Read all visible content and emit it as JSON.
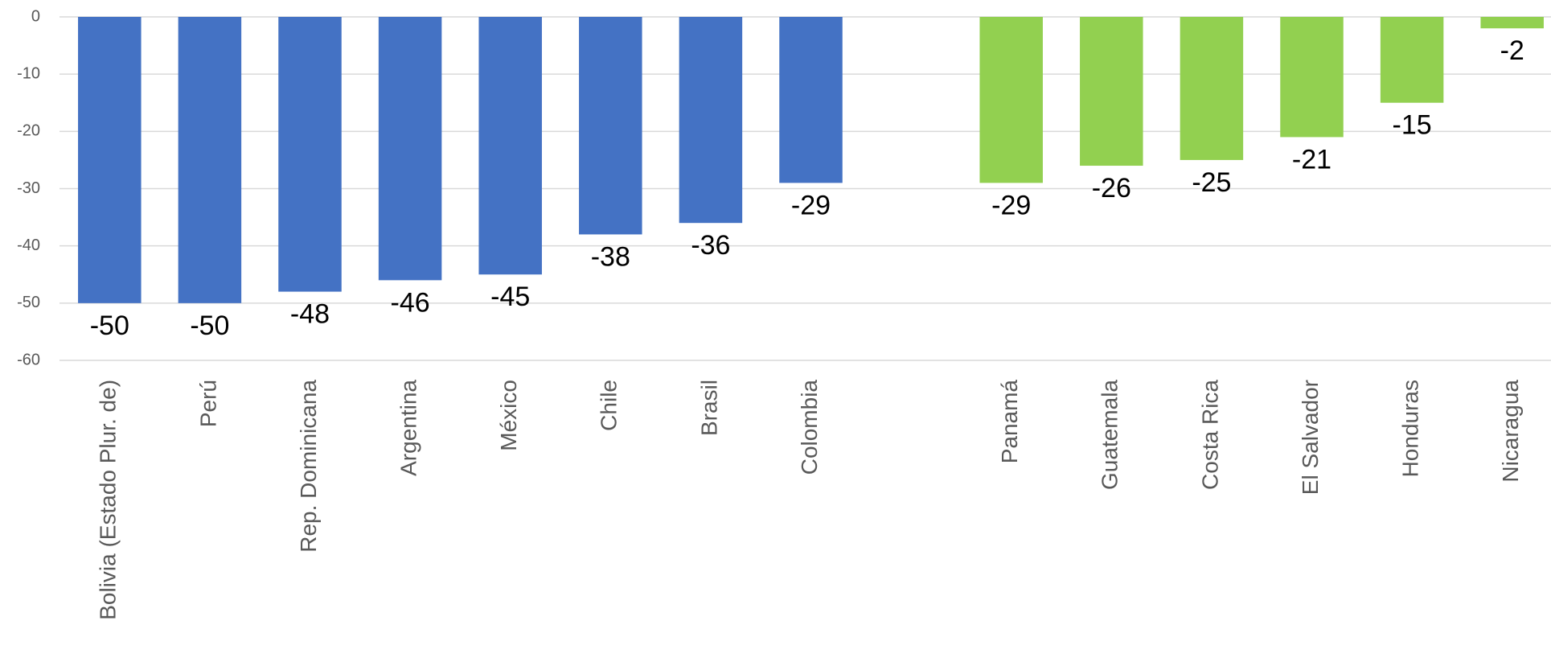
{
  "chart_data": {
    "type": "bar",
    "categories": [
      "Bolivia (Estado Plur. de)",
      "Perú",
      "Rep. Dominicana",
      "Argentina",
      "México",
      "Chile",
      "Brasil",
      "Colombia",
      null,
      "Panamá",
      "Guatemala",
      "Costa Rica",
      "El Salvador",
      "Honduras",
      "Nicaragua"
    ],
    "values": [
      -50,
      -50,
      -48,
      -46,
      -45,
      -38,
      -36,
      -29,
      null,
      -29,
      -26,
      -25,
      -21,
      -15,
      -2
    ],
    "colors": [
      "#4472c4",
      "#4472c4",
      "#4472c4",
      "#4472c4",
      "#4472c4",
      "#4472c4",
      "#4472c4",
      "#4472c4",
      null,
      "#92d050",
      "#92d050",
      "#92d050",
      "#92d050",
      "#92d050",
      "#92d050"
    ],
    "ylim": [
      -60,
      0
    ],
    "yticks": [
      0,
      -10,
      -20,
      -30,
      -40,
      -50,
      -60
    ],
    "grid": true
  }
}
